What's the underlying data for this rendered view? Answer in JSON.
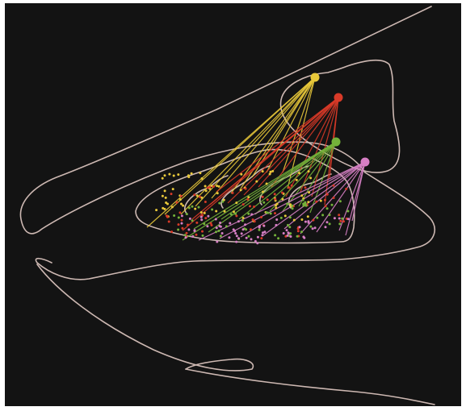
{
  "colors": {
    "background": "#131313",
    "border": "#ffffff",
    "outline": "#cdb8b2",
    "yellow": "#e8c83a",
    "red": "#d83a28",
    "green": "#74b23a",
    "pink": "#d67fc4"
  },
  "sources": [
    {
      "id": "yellow",
      "color_key": "yellow"
    },
    {
      "id": "red",
      "color_key": "red"
    },
    {
      "id": "green",
      "color_key": "green"
    },
    {
      "id": "pink",
      "color_key": "pink"
    }
  ]
}
